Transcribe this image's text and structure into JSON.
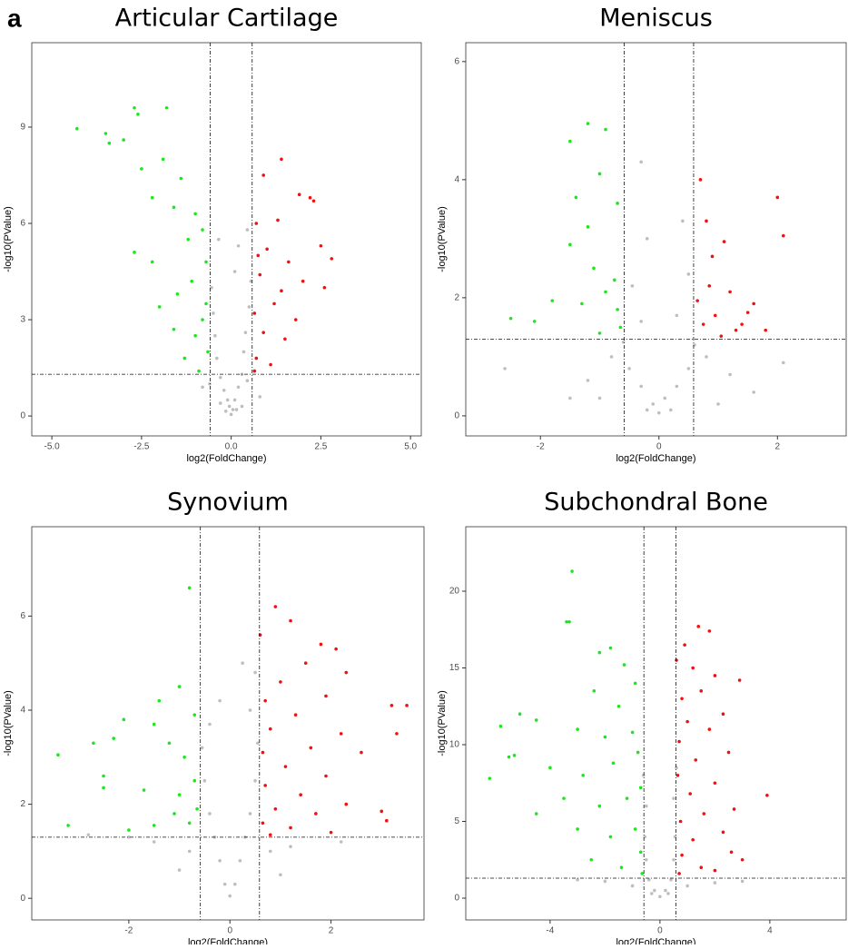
{
  "panel_label": "a",
  "chart_data": [
    {
      "type": "scatter",
      "title": "Articular Cartilage",
      "x_label": "log2(FoldChange)",
      "y_label": "-log10(PValue)",
      "xlim": [
        -5.56,
        5.3
      ],
      "ylim": [
        -0.62,
        11.63
      ],
      "xticks": [
        {
          "value": -5,
          "label": "-5.0"
        },
        {
          "value": -2.5,
          "label": "-2.5"
        },
        {
          "value": 0,
          "label": "0.0"
        },
        {
          "value": 2.5,
          "label": "2.5"
        },
        {
          "value": 5,
          "label": "5.0"
        }
      ],
      "yticks": [
        0,
        3,
        6,
        9
      ],
      "threshold_lines": {
        "x": [
          -0.585,
          0.585
        ],
        "y": 1.3
      },
      "series": [
        {
          "color": "#bebebe",
          "x": [
            0,
            0.05,
            -0.05,
            -0.1,
            0.1,
            -0.2,
            0.2,
            -0.3,
            0.3,
            -0.4,
            0.35,
            -0.45,
            0.4,
            -0.5,
            0.5,
            -0.55,
            0.55,
            -0.3,
            0.3,
            -0.15,
            0.15,
            0.45,
            -0.6,
            0.8,
            -0.8,
            0.1,
            0.2,
            0.45,
            -0.35
          ],
          "values": [
            0.05,
            0.2,
            0.3,
            0.5,
            0.5,
            0.8,
            0.9,
            1.2,
            1.3,
            1.8,
            2.0,
            2.5,
            2.6,
            3.2,
            3.4,
            4.0,
            4.2,
            0.4,
            0.3,
            0.15,
            0.2,
            1.1,
            1.0,
            0.6,
            0.9,
            4.5,
            5.3,
            5.8,
            5.5
          ]
        },
        {
          "color": "#1ee61e",
          "x": [
            -4.3,
            -3.5,
            -3.4,
            -2.7,
            -2.6,
            -1.8,
            -3.0,
            -2.5,
            -1.9,
            -1.4,
            -2.2,
            -1.6,
            -1.0,
            -2.7,
            -2.2,
            -1.2,
            -0.8,
            -2.0,
            -1.6,
            -1.1,
            -0.7,
            -1.0,
            -0.65,
            -1.3,
            -0.9,
            -0.7,
            -1.5,
            -0.8
          ],
          "values": [
            8.95,
            8.8,
            8.5,
            9.6,
            9.4,
            9.6,
            8.6,
            7.7,
            8.0,
            7.4,
            6.8,
            6.5,
            6.3,
            5.1,
            4.8,
            5.5,
            5.8,
            3.4,
            2.7,
            4.2,
            3.5,
            2.5,
            2.0,
            1.8,
            1.4,
            4.8,
            3.8,
            3.0
          ]
        },
        {
          "color": "#ee1111",
          "x": [
            1.4,
            0.9,
            1.9,
            2.2,
            2.3,
            1.3,
            0.7,
            2.5,
            2.8,
            1.0,
            1.6,
            0.8,
            2.0,
            2.6,
            1.2,
            0.65,
            1.8,
            0.9,
            1.5,
            0.7,
            1.1,
            0.65,
            1.4,
            0.75
          ],
          "values": [
            8.0,
            7.5,
            6.9,
            6.8,
            6.7,
            6.1,
            6.0,
            5.3,
            4.9,
            5.2,
            4.8,
            4.4,
            4.2,
            4.0,
            3.5,
            3.2,
            3.0,
            2.6,
            2.4,
            1.8,
            1.6,
            1.4,
            3.9,
            5.0
          ]
        }
      ]
    },
    {
      "type": "scatter",
      "title": "Meniscus",
      "x_label": "log2(FoldChange)",
      "y_label": "-log10(PValue)",
      "xlim": [
        -3.26,
        3.16
      ],
      "ylim": [
        -0.34,
        6.32
      ],
      "xticks": [
        -2,
        0,
        2
      ],
      "yticks": [
        0,
        2,
        4,
        6
      ],
      "threshold_lines": {
        "x": [
          -0.585,
          0.585
        ],
        "y": 1.3
      },
      "series": [
        {
          "color": "#bebebe",
          "x": [
            0,
            -0.1,
            0.1,
            -0.3,
            0.3,
            -0.5,
            0.5,
            -0.8,
            0.8,
            -1.2,
            1.2,
            -1.5,
            1.6,
            -0.6,
            0.6,
            -0.3,
            0.3,
            -0.45,
            0.5,
            -0.2,
            0.4,
            -0.3,
            -2.6,
            2.1,
            -1.0,
            1.0,
            0.2,
            -0.2
          ],
          "values": [
            0.05,
            0.2,
            0.3,
            0.5,
            0.5,
            0.8,
            0.8,
            1.0,
            1.0,
            0.6,
            0.7,
            0.3,
            0.4,
            1.25,
            1.2,
            1.6,
            1.7,
            2.2,
            2.4,
            3.0,
            3.3,
            4.3,
            0.8,
            0.9,
            0.3,
            0.2,
            0.1,
            0.1
          ]
        },
        {
          "color": "#1ee61e",
          "x": [
            -1.2,
            -1.5,
            -0.9,
            -1.0,
            -1.4,
            -0.7,
            -1.2,
            -1.5,
            -1.1,
            -1.8,
            -2.5,
            -2.1,
            -0.9,
            -1.3,
            -0.7,
            -0.65,
            -1.0,
            -0.75
          ],
          "values": [
            4.95,
            4.65,
            4.85,
            4.1,
            3.7,
            3.6,
            3.2,
            2.9,
            2.5,
            1.95,
            1.65,
            1.6,
            2.1,
            1.9,
            1.8,
            1.5,
            1.4,
            2.3
          ]
        },
        {
          "color": "#ee1111",
          "x": [
            0.7,
            2.0,
            2.1,
            0.8,
            1.1,
            0.9,
            1.5,
            0.85,
            1.2,
            1.6,
            0.65,
            0.95,
            1.3,
            1.05,
            1.8,
            0.75,
            1.4
          ],
          "values": [
            4.0,
            3.7,
            3.05,
            3.3,
            2.95,
            2.7,
            1.75,
            2.2,
            2.1,
            1.9,
            1.95,
            1.7,
            1.45,
            1.35,
            1.45,
            1.55,
            1.55
          ]
        }
      ]
    },
    {
      "type": "scatter",
      "title": "Synovium",
      "x_label": "log2(FoldChange)",
      "y_label": "-log10(PValue)",
      "xlim": [
        -3.92,
        3.84
      ],
      "ylim": [
        -0.46,
        7.9
      ],
      "xticks": [
        -2,
        0,
        2
      ],
      "yticks": [
        0,
        2,
        4,
        6
      ],
      "threshold_lines": {
        "x": [
          -0.585,
          0.585
        ],
        "y": 1.3
      },
      "series": [
        {
          "color": "#bebebe",
          "x": [
            0,
            -0.1,
            0.1,
            -0.2,
            0.2,
            -0.3,
            0.3,
            -0.4,
            0.4,
            -0.5,
            0.5,
            -0.55,
            0.55,
            -0.4,
            0.4,
            -0.2,
            0.5,
            -0.8,
            0.8,
            -1.5,
            -2.0,
            -2.8,
            1.2,
            2.2,
            -1.0,
            1.0,
            0.25
          ],
          "values": [
            0.05,
            0.3,
            0.3,
            0.8,
            0.8,
            1.3,
            1.3,
            1.8,
            1.8,
            2.5,
            2.5,
            3.2,
            3.3,
            3.7,
            4.0,
            4.2,
            4.8,
            1.0,
            1.0,
            1.2,
            1.3,
            1.35,
            1.1,
            1.2,
            0.6,
            0.5,
            5.0
          ]
        },
        {
          "color": "#1ee61e",
          "x": [
            -0.8,
            -1.0,
            -1.4,
            -2.1,
            -1.5,
            -0.7,
            -3.4,
            -2.3,
            -2.7,
            -1.2,
            -0.9,
            -2.5,
            -1.7,
            -1.0,
            -0.7,
            -2.5,
            -1.1,
            -0.8,
            -1.5,
            -3.2,
            -2.0,
            -0.65
          ],
          "values": [
            6.6,
            4.5,
            4.2,
            3.8,
            3.7,
            3.9,
            3.05,
            3.4,
            3.3,
            3.3,
            3.0,
            2.6,
            2.3,
            2.2,
            2.5,
            2.35,
            1.8,
            1.6,
            1.55,
            1.55,
            1.45,
            1.9
          ]
        },
        {
          "color": "#ee1111",
          "x": [
            0.9,
            1.2,
            1.8,
            2.1,
            0.6,
            2.3,
            1.5,
            1.0,
            0.7,
            3.2,
            3.5,
            1.9,
            1.3,
            0.8,
            2.2,
            3.3,
            1.6,
            0.65,
            2.6,
            1.1,
            1.9,
            0.7,
            1.4,
            2.3,
            0.9,
            1.7,
            3.0,
            3.1,
            0.65,
            1.2,
            2.0,
            0.8
          ],
          "values": [
            6.2,
            5.9,
            5.4,
            5.3,
            5.6,
            4.8,
            5.0,
            4.6,
            4.2,
            4.1,
            4.1,
            4.3,
            3.9,
            3.6,
            3.5,
            3.5,
            3.2,
            3.1,
            3.1,
            2.8,
            2.6,
            2.4,
            2.2,
            2.0,
            1.9,
            1.8,
            1.85,
            1.65,
            1.6,
            1.5,
            1.4,
            1.35
          ]
        }
      ]
    },
    {
      "type": "scatter",
      "title": "Subchondral Bone",
      "x_label": "log2(FoldChange)",
      "y_label": "-log10(PValue)",
      "xlim": [
        -7.07,
        6.78
      ],
      "ylim": [
        -1.42,
        24.2
      ],
      "xticks": [
        -4,
        0,
        4
      ],
      "yticks": [
        0,
        5,
        10,
        15,
        20
      ],
      "threshold_lines": {
        "x": [
          -0.585,
          0.585
        ],
        "y": 1.3
      },
      "series": [
        {
          "color": "#bebebe",
          "x": [
            0,
            -0.2,
            0.2,
            -0.4,
            0.4,
            -0.5,
            0.5,
            -0.55,
            0.55,
            -0.5,
            0.5,
            -1.0,
            1.0,
            -2.0,
            2.0,
            -0.3,
            0.3,
            -0.6,
            0.6,
            -3.0,
            3.0
          ],
          "values": [
            0.1,
            0.5,
            0.5,
            1.2,
            1.2,
            2.5,
            2.5,
            4.0,
            4.0,
            6.0,
            6.5,
            0.8,
            0.8,
            1.1,
            1.0,
            0.3,
            0.3,
            8.0,
            8.5,
            1.2,
            1.1
          ]
        },
        {
          "color": "#1ee61e",
          "x": [
            -3.2,
            -3.3,
            -3.4,
            -2.2,
            -1.8,
            -1.3,
            -0.9,
            -2.4,
            -1.5,
            -5.8,
            -4.5,
            -5.1,
            -3.0,
            -2.0,
            -1.0,
            -5.5,
            -6.2,
            -5.3,
            -4.0,
            -2.8,
            -1.7,
            -0.8,
            -3.5,
            -2.2,
            -1.2,
            -0.7,
            -3.0,
            -1.8,
            -0.9,
            -2.5,
            -1.4,
            -0.7,
            -4.5,
            -0.65
          ],
          "values": [
            21.3,
            18,
            18,
            16,
            16.3,
            15.2,
            14,
            13.5,
            12.5,
            11.2,
            11.6,
            12,
            11,
            10.5,
            10.8,
            9.2,
            7.8,
            9.3,
            8.5,
            8.0,
            8.8,
            9.5,
            6.5,
            6.0,
            6.5,
            7.2,
            4.5,
            4.0,
            4.5,
            2.5,
            2.0,
            3.0,
            5.5,
            1.6
          ]
        },
        {
          "color": "#ee1111",
          "x": [
            1.4,
            1.8,
            0.9,
            0.6,
            1.2,
            2.0,
            2.9,
            1.5,
            0.8,
            2.3,
            1.0,
            1.8,
            0.7,
            2.5,
            1.3,
            3.9,
            0.65,
            2.0,
            1.1,
            2.7,
            1.6,
            0.75,
            2.3,
            1.2,
            2.6,
            0.8,
            1.5,
            2.0,
            0.7,
            3.0
          ],
          "values": [
            17.7,
            17.4,
            16.5,
            15.5,
            15.0,
            14.5,
            14.2,
            13.5,
            13,
            12,
            11.5,
            11,
            10.2,
            9.5,
            9.0,
            6.7,
            8.0,
            7.5,
            6.8,
            5.8,
            5.5,
            5.0,
            4.3,
            3.8,
            3.0,
            2.8,
            2.0,
            1.8,
            1.6,
            2.5
          ]
        }
      ]
    }
  ]
}
